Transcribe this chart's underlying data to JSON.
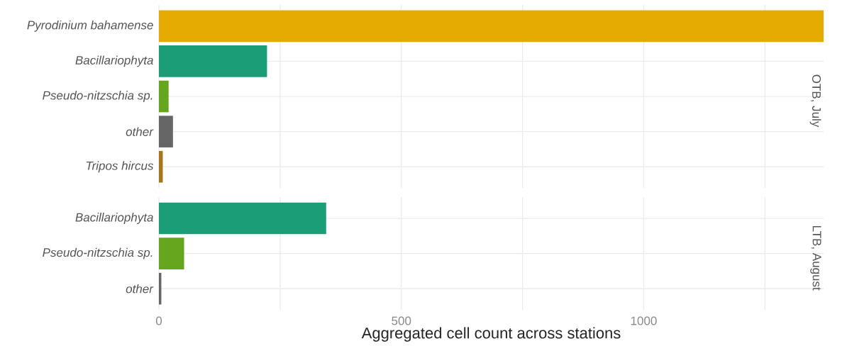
{
  "chart_data": [
    {
      "type": "bar",
      "orientation": "horizontal",
      "title": "OTB, July",
      "tick_labels": "y",
      "grid": true,
      "categories": [
        "*Pyrodinium bahamense*",
        "*Bacillariophyta*",
        "*Pseudo-nitzschia sp.*",
        "*other*",
        "*Tripos hircus*"
      ],
      "values": [
        1371,
        223,
        20,
        29,
        8
      ],
      "colors": [
        "#e6ab02",
        "#1b9e77",
        "#66a61e",
        "#666666",
        "#a6761d"
      ],
      "xlim": [
        0,
        1371
      ],
      "xticks": [
        0,
        {
          "value": 250,
          "label": null
        },
        500,
        {
          "value": 750,
          "label": null
        },
        1000,
        {
          "value": 1250,
          "label": null
        }
      ]
    },
    {
      "type": "bar",
      "orientation": "horizontal",
      "title": "LTB, August",
      "xlabel": "Aggregated cell count across stations",
      "grid": true,
      "categories": [
        "*Bacillariophyta*",
        "*Pseudo-nitzschia sp.*",
        "*other*"
      ],
      "values": [
        345,
        52,
        5
      ],
      "colors": [
        "#1b9e77",
        "#66a61e",
        "#666666"
      ],
      "xlim": [
        0,
        1371
      ],
      "xticks": [
        0,
        {
          "value": 250,
          "label": null
        },
        500,
        {
          "value": 750,
          "label": null
        },
        1000,
        {
          "value": 1250,
          "label": null
        }
      ]
    }
  ]
}
